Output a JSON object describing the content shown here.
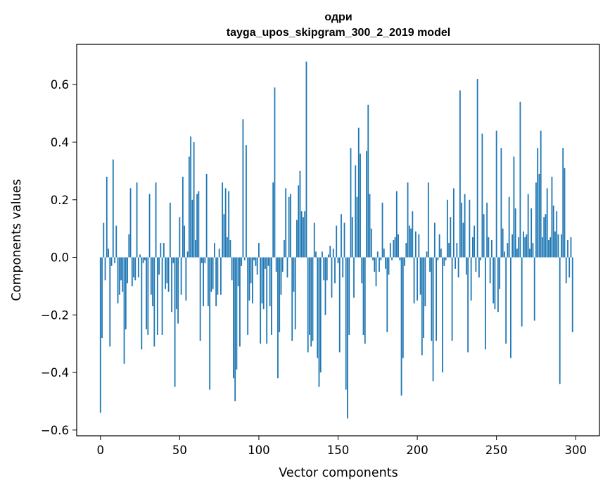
{
  "chart_data": {
    "type": "bar",
    "title": "одри",
    "subtitle": "tayga_upos_skipgram_300_2_2019 model",
    "xlabel": "Vector components",
    "ylabel": "Components values",
    "xlim": [
      -15,
      315
    ],
    "ylim": [
      -0.62,
      0.74
    ],
    "xticks": [
      0,
      50,
      100,
      150,
      200,
      250,
      300
    ],
    "yticks": [
      -0.6,
      -0.4,
      -0.2,
      0.0,
      0.2,
      0.4,
      0.6
    ],
    "ytick_labels": [
      "−0.6",
      "−0.4",
      "−0.2",
      "0.0",
      "0.2",
      "0.4",
      "0.6"
    ],
    "bar_color": "#1f77b4",
    "values": [
      -0.54,
      -0.28,
      0.12,
      -0.08,
      0.28,
      0.03,
      -0.31,
      -0.03,
      0.34,
      -0.02,
      0.11,
      -0.16,
      -0.13,
      -0.08,
      -0.12,
      -0.37,
      -0.25,
      -0.09,
      0.08,
      0.24,
      -0.1,
      -0.07,
      -0.08,
      0.26,
      -0.07,
      0.01,
      -0.32,
      -0.02,
      -0.01,
      -0.25,
      -0.27,
      0.22,
      -0.13,
      -0.17,
      -0.31,
      0.26,
      -0.27,
      -0.06,
      0.05,
      -0.27,
      0.05,
      -0.11,
      -0.09,
      -0.12,
      0.19,
      -0.19,
      -0.02,
      -0.45,
      -0.18,
      -0.23,
      0.14,
      -0.13,
      0.28,
      0.11,
      -0.15,
      0.02,
      0.35,
      0.42,
      0.2,
      0.4,
      0.06,
      0.22,
      0.23,
      -0.29,
      -0.02,
      -0.17,
      -0.02,
      0.29,
      -0.17,
      -0.46,
      -0.12,
      -0.11,
      0.05,
      -0.17,
      -0.13,
      0.03,
      -0.13,
      0.26,
      0.15,
      0.24,
      0.07,
      0.23,
      0.06,
      -0.08,
      -0.42,
      -0.5,
      -0.39,
      -0.1,
      -0.31,
      -0.03,
      0.48,
      -0.01,
      0.39,
      -0.27,
      -0.15,
      -0.09,
      -0.16,
      -0.01,
      -0.03,
      -0.06,
      0.05,
      -0.3,
      -0.16,
      -0.18,
      -0.04,
      -0.3,
      -0.03,
      -0.17,
      -0.27,
      0.26,
      0.59,
      -0.05,
      -0.42,
      -0.26,
      -0.13,
      -0.05,
      0.06,
      0.24,
      -0.07,
      0.21,
      0.22,
      -0.29,
      -0.12,
      -0.25,
      0.13,
      0.25,
      0.3,
      0.16,
      0.14,
      0.16,
      0.68,
      -0.33,
      -0.27,
      -0.31,
      -0.29,
      0.12,
      0.02,
      -0.35,
      -0.45,
      -0.4,
      0.02,
      -0.08,
      -0.2,
      -0.08,
      0.01,
      0.04,
      -0.14,
      0.03,
      -0.09,
      0.11,
      -0.02,
      -0.33,
      0.15,
      -0.07,
      0.12,
      -0.46,
      -0.56,
      -0.27,
      0.38,
      0.14,
      -0.14,
      0.32,
      0.21,
      0.45,
      0.36,
      -0.09,
      -0.27,
      -0.3,
      0.37,
      0.53,
      0.22,
      0.1,
      -0.01,
      -0.05,
      -0.1,
      0.02,
      -0.05,
      -0.01,
      0.19,
      0.03,
      -0.04,
      -0.26,
      -0.06,
      0.05,
      -0.01,
      0.06,
      0.07,
      0.23,
      0.08,
      -0.01,
      -0.48,
      -0.35,
      -0.03,
      0.05,
      0.26,
      0.11,
      0.1,
      0.16,
      -0.16,
      0.09,
      -0.15,
      0.08,
      -0.13,
      -0.34,
      -0.28,
      -0.17,
      0.02,
      0.26,
      -0.05,
      -0.29,
      -0.43,
      0.12,
      -0.29,
      -0.01,
      0.08,
      0.03,
      -0.4,
      -0.03,
      -0.01,
      0.2,
      0.05,
      0.14,
      -0.29,
      0.24,
      -0.04,
      0.05,
      -0.07,
      0.58,
      0.19,
      0.12,
      0.22,
      -0.06,
      -0.33,
      0.2,
      -0.15,
      0.07,
      0.11,
      -0.05,
      0.62,
      -0.07,
      -0.01,
      0.43,
      0.15,
      -0.32,
      0.19,
      0.07,
      -0.09,
      0.06,
      -0.16,
      -0.18,
      0.44,
      -0.19,
      -0.11,
      0.38,
      0.1,
      0.02,
      -0.3,
      0.05,
      0.21,
      -0.35,
      0.08,
      0.35,
      0.17,
      0.03,
      0.07,
      0.54,
      -0.24,
      0.09,
      0.07,
      0.08,
      0.22,
      0.03,
      0.17,
      0.05,
      -0.22,
      0.26,
      0.38,
      0.29,
      0.44,
      0.07,
      0.14,
      0.15,
      0.24,
      0.06,
      0.07,
      0.28,
      0.18,
      0.09,
      0.16,
      0.08,
      -0.44,
      0.08,
      0.38,
      0.31,
      -0.09,
      0.06,
      -0.07,
      0.07,
      -0.26
    ]
  }
}
